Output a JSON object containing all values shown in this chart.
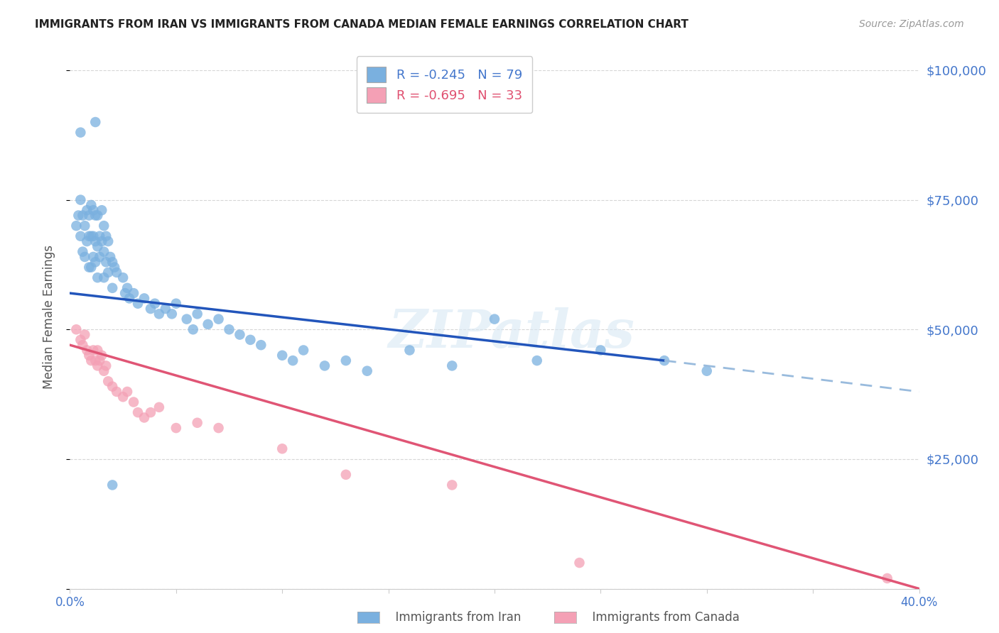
{
  "title": "IMMIGRANTS FROM IRAN VS IMMIGRANTS FROM CANADA MEDIAN FEMALE EARNINGS CORRELATION CHART",
  "source": "Source: ZipAtlas.com",
  "ylabel": "Median Female Earnings",
  "xlim": [
    0.0,
    0.4
  ],
  "ylim": [
    0,
    105000
  ],
  "yticks": [
    0,
    25000,
    50000,
    75000,
    100000
  ],
  "xticks": [
    0.0,
    0.05,
    0.1,
    0.15,
    0.2,
    0.25,
    0.3,
    0.35,
    0.4
  ],
  "iran_color": "#7ab0df",
  "canada_color": "#f4a0b5",
  "iran_line_color": "#2255bb",
  "canada_line_color": "#e05575",
  "iran_dash_color": "#99bbdd",
  "iran_R": -0.245,
  "iran_N": 79,
  "canada_R": -0.695,
  "canada_N": 33,
  "watermark": "ZIPatlas",
  "iran_line_y0": 57000,
  "iran_line_y_at_028": 44000,
  "iran_line_y_at_040": 38000,
  "canada_line_y0": 47000,
  "canada_line_y_at_040": 0,
  "iran_scatter_x": [
    0.003,
    0.004,
    0.005,
    0.005,
    0.006,
    0.006,
    0.007,
    0.007,
    0.008,
    0.008,
    0.009,
    0.009,
    0.009,
    0.01,
    0.01,
    0.01,
    0.011,
    0.011,
    0.011,
    0.012,
    0.012,
    0.012,
    0.013,
    0.013,
    0.013,
    0.014,
    0.014,
    0.015,
    0.015,
    0.016,
    0.016,
    0.016,
    0.017,
    0.017,
    0.018,
    0.018,
    0.019,
    0.02,
    0.02,
    0.021,
    0.022,
    0.025,
    0.026,
    0.027,
    0.028,
    0.03,
    0.032,
    0.035,
    0.038,
    0.04,
    0.042,
    0.045,
    0.048,
    0.05,
    0.055,
    0.058,
    0.06,
    0.065,
    0.07,
    0.075,
    0.08,
    0.085,
    0.09,
    0.1,
    0.105,
    0.11,
    0.12,
    0.13,
    0.14,
    0.16,
    0.18,
    0.2,
    0.22,
    0.25,
    0.28,
    0.3,
    0.005,
    0.012,
    0.02
  ],
  "iran_scatter_y": [
    70000,
    72000,
    75000,
    68000,
    72000,
    65000,
    70000,
    64000,
    73000,
    67000,
    72000,
    68000,
    62000,
    74000,
    68000,
    62000,
    73000,
    68000,
    64000,
    72000,
    67000,
    63000,
    72000,
    66000,
    60000,
    68000,
    64000,
    73000,
    67000,
    70000,
    65000,
    60000,
    68000,
    63000,
    67000,
    61000,
    64000,
    63000,
    58000,
    62000,
    61000,
    60000,
    57000,
    58000,
    56000,
    57000,
    55000,
    56000,
    54000,
    55000,
    53000,
    54000,
    53000,
    55000,
    52000,
    50000,
    53000,
    51000,
    52000,
    50000,
    49000,
    48000,
    47000,
    45000,
    44000,
    46000,
    43000,
    44000,
    42000,
    46000,
    43000,
    52000,
    44000,
    46000,
    44000,
    42000,
    88000,
    90000,
    20000
  ],
  "canada_scatter_x": [
    0.003,
    0.005,
    0.006,
    0.007,
    0.008,
    0.009,
    0.01,
    0.011,
    0.012,
    0.013,
    0.013,
    0.014,
    0.015,
    0.016,
    0.017,
    0.018,
    0.02,
    0.022,
    0.025,
    0.027,
    0.03,
    0.032,
    0.035,
    0.038,
    0.042,
    0.05,
    0.06,
    0.07,
    0.1,
    0.13,
    0.18,
    0.24,
    0.385
  ],
  "canada_scatter_y": [
    50000,
    48000,
    47000,
    49000,
    46000,
    45000,
    44000,
    46000,
    44000,
    46000,
    43000,
    44000,
    45000,
    42000,
    43000,
    40000,
    39000,
    38000,
    37000,
    38000,
    36000,
    34000,
    33000,
    34000,
    35000,
    31000,
    32000,
    31000,
    27000,
    22000,
    20000,
    5000,
    2000
  ]
}
